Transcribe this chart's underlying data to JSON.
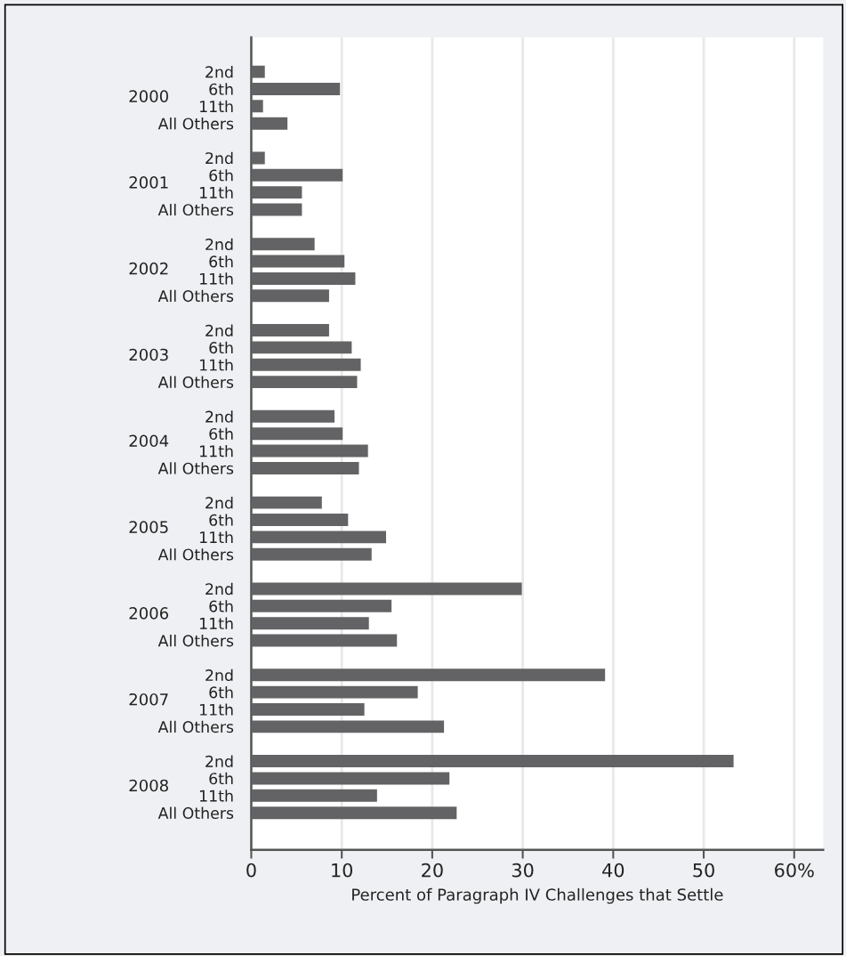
{
  "chart_data": {
    "type": "bar",
    "orientation": "horizontal",
    "xlabel": "Percent of Paragraph IV Challenges that Settle",
    "categories": [
      "2nd",
      "6th",
      "11th",
      "All Others",
      "2nd",
      "6th",
      "11th",
      "All Others",
      "2nd",
      "6th",
      "11th",
      "All Others",
      "2nd",
      "6th",
      "11th",
      "All Others",
      "2nd",
      "6th",
      "11th",
      "All Others",
      "2nd",
      "6th",
      "11th",
      "All Others",
      "2nd",
      "6th",
      "11th",
      "All Others",
      "2nd",
      "6th",
      "11th",
      "All Others",
      "2nd",
      "6th",
      "11th",
      "All Others"
    ],
    "values": [
      1.5,
      9.8,
      1.3,
      4.0,
      1.5,
      10.1,
      5.6,
      5.6,
      7.0,
      10.3,
      11.5,
      8.6,
      8.6,
      11.1,
      12.1,
      11.7,
      9.2,
      10.1,
      12.9,
      11.9,
      7.8,
      10.7,
      14.9,
      13.3,
      29.9,
      15.5,
      13.0,
      16.1,
      39.1,
      18.4,
      12.5,
      21.3,
      53.3,
      21.9,
      13.9,
      22.7
    ],
    "color": "#636365",
    "annotations": [
      "2000",
      "2001",
      "2002",
      "2003",
      "2004",
      "2005",
      "2006",
      "2007",
      "2008"
    ],
    "xlim": [
      0,
      63.2
    ],
    "xticks": [
      0,
      10,
      20,
      30,
      40,
      50,
      {
        "value": 60,
        "label": "60%"
      }
    ],
    "grid": "x"
  }
}
